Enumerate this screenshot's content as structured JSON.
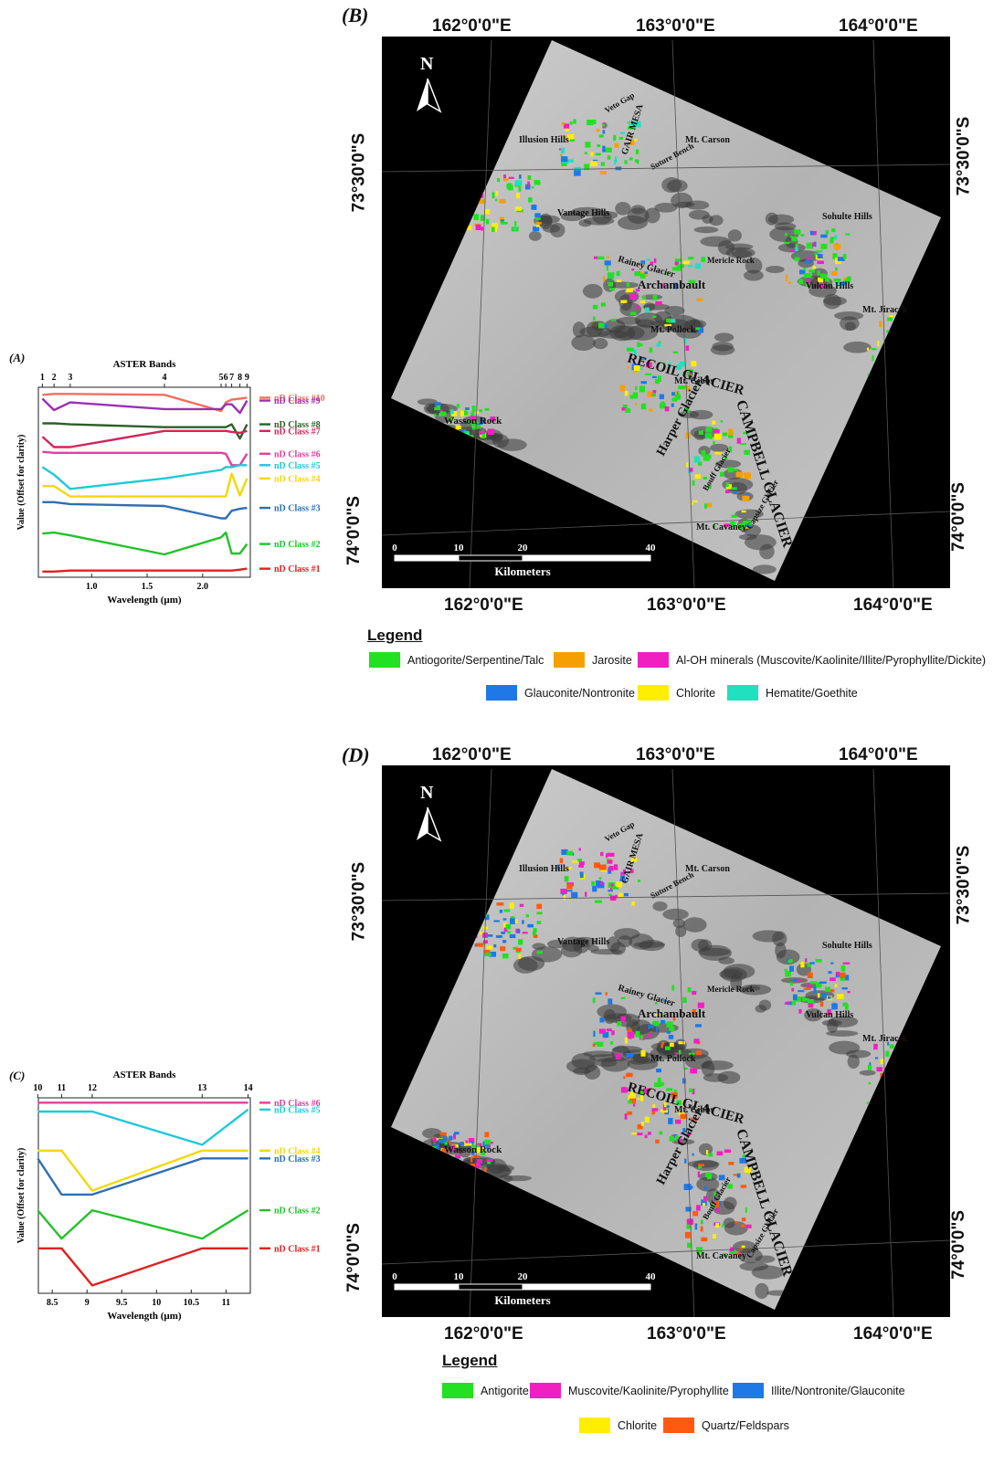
{
  "panels": {
    "A": {
      "label": "(A)",
      "chart_data": {
        "type": "line",
        "title": "ASTER Bands",
        "xlabel": "Wavelength (µm)",
        "ylabel": "Value (Offset for clarity)",
        "xlim": [
          0.52,
          2.43
        ],
        "x_ticks": [
          "1.0",
          "1.5",
          "2.0"
        ],
        "band_ticks": [
          {
            "label": "1",
            "x": 0.556
          },
          {
            "label": "2",
            "x": 0.661
          },
          {
            "label": "3",
            "x": 0.807
          },
          {
            "label": "4",
            "x": 1.656
          },
          {
            "label": "5",
            "x": 2.167
          },
          {
            "label": "6",
            "x": 2.209
          },
          {
            "label": "7",
            "x": 2.262
          },
          {
            "label": "8",
            "x": 2.336
          },
          {
            "label": "9",
            "x": 2.4
          }
        ],
        "x": [
          0.556,
          0.661,
          0.807,
          1.656,
          2.167,
          2.209,
          2.262,
          2.336,
          2.4
        ],
        "series": [
          {
            "name": "nD Class #10",
            "color": "#f07060",
            "values": [
              9.6,
              9.65,
              9.65,
              9.6,
              8.75,
              9.2,
              9.35,
              9.4,
              9.45
            ]
          },
          {
            "name": "nD Class #9",
            "color": "#9b2fb5",
            "values": [
              9.4,
              8.8,
              9.2,
              8.85,
              8.85,
              9.1,
              9.1,
              8.65,
              9.3
            ]
          },
          {
            "name": "nD Class #8",
            "color": "#2f5e2a",
            "values": [
              8.1,
              8.1,
              8.05,
              7.9,
              7.9,
              7.9,
              8.05,
              7.3,
              8.05
            ]
          },
          {
            "name": "nD Class #7",
            "color": "#d42458",
            "values": [
              7.4,
              6.85,
              6.85,
              7.7,
              7.7,
              7.7,
              7.65,
              7.6,
              7.7
            ]
          },
          {
            "name": "nD Class #6",
            "color": "#e040a0",
            "values": [
              6.6,
              6.55,
              6.55,
              6.55,
              6.55,
              6.5,
              5.9,
              5.9,
              6.5
            ]
          },
          {
            "name": "nD Class #5",
            "color": "#20c8d8",
            "values": [
              5.8,
              5.4,
              4.65,
              5.2,
              5.65,
              5.8,
              5.8,
              5.9,
              5.9
            ]
          },
          {
            "name": "nD Class #4",
            "color": "#f2d80a",
            "values": [
              4.8,
              4.8,
              4.25,
              4.25,
              4.25,
              4.25,
              5.45,
              4.3,
              5.2
            ]
          },
          {
            "name": "nD Class #3",
            "color": "#2d6fb3",
            "values": [
              3.95,
              3.95,
              3.85,
              3.75,
              3.1,
              3.1,
              3.5,
              3.6,
              3.65
            ]
          },
          {
            "name": "nD Class #2",
            "color": "#22c22a",
            "values": [
              2.3,
              2.35,
              2.2,
              1.2,
              2.1,
              2.35,
              1.25,
              1.25,
              1.75
            ]
          },
          {
            "name": "nD Class #1",
            "color": "#e02020",
            "values": [
              0.3,
              0.3,
              0.35,
              0.35,
              0.35,
              0.35,
              0.35,
              0.4,
              0.45
            ]
          }
        ],
        "ylim": [
          0,
          10
        ]
      }
    },
    "C": {
      "label": "(C)",
      "chart_data": {
        "type": "line",
        "title": "ASTER Bands",
        "xlabel": "Wavelength (µm)",
        "ylabel": "Value (Offset for clarity)",
        "xlim": [
          8.3,
          11.35
        ],
        "x_ticks": [
          "8.5",
          "9",
          "9.5",
          "10",
          "10.5",
          "11"
        ],
        "band_ticks": [
          {
            "label": "10",
            "x": 8.291
          },
          {
            "label": "11",
            "x": 8.634
          },
          {
            "label": "12",
            "x": 9.075
          },
          {
            "label": "13",
            "x": 10.657
          },
          {
            "label": "14",
            "x": 11.318
          }
        ],
        "x": [
          8.291,
          8.634,
          9.075,
          10.657,
          11.318
        ],
        "series": [
          {
            "name": "nD Class #6",
            "color": "#e040a0",
            "values": [
              9.75,
              9.75,
              9.75,
              9.75,
              9.75
            ]
          },
          {
            "name": "nD Class #5",
            "color": "#20c8d8",
            "values": [
              9.3,
              9.3,
              9.3,
              7.6,
              9.4
            ]
          },
          {
            "name": "nD Class #4",
            "color": "#f2d80a",
            "values": [
              7.3,
              7.3,
              5.25,
              7.3,
              7.3
            ]
          },
          {
            "name": "nD Class #3",
            "color": "#2d6fb3",
            "values": [
              6.9,
              5.05,
              5.05,
              6.9,
              6.9
            ]
          },
          {
            "name": "nD Class #2",
            "color": "#22c22a",
            "values": [
              4.25,
              2.8,
              4.25,
              2.8,
              4.25
            ]
          },
          {
            "name": "nD Class #1",
            "color": "#e02020",
            "values": [
              2.3,
              2.3,
              0.4,
              2.3,
              2.3
            ]
          }
        ],
        "ylim": [
          0,
          10
        ]
      }
    },
    "B": {
      "label": "(B)",
      "top_lon": [
        "162°0'0\"E",
        "163°0'0\"E",
        "164°0'0\"E"
      ],
      "bottom_lon": [
        "162°0'0\"E",
        "163°0'0\"E",
        "164°0'0\"E"
      ],
      "left_lat": [
        "73°30'0\"S",
        "74°0'0\"S"
      ],
      "right_lat": [
        "73°30'0\"S",
        "74°0'0\"S"
      ],
      "north": "N",
      "scale_ticks": [
        "0",
        "10",
        "20",
        "40"
      ],
      "scale_unit": "Kilometers",
      "place_names": [
        "Veto Gap",
        "Illusion Hills",
        "Mt. Carson",
        "Suture Bench",
        "GAIR MESA",
        "Vantage Hills",
        "Sohulte Hills",
        "Mericle Rock",
        "Rainey Glacier",
        "Archambault",
        "Vulcan Hills",
        "Mt. Jiracek",
        "Mt. Pollock",
        "RECOIL GLACIER",
        "Mt. Gibbs",
        "CAMPBELL GLACIER",
        "Wasson Rock",
        "Harper Glacier",
        "Bouff Glacier",
        "Mt. Cavaney",
        "Capsize Glacier"
      ],
      "legend_title": "Legend",
      "legend": [
        {
          "label": "Antiogorite/Serpentine/Talc",
          "color": "#22e022"
        },
        {
          "label": "Jarosite",
          "color": "#f5a000"
        },
        {
          "label": "Al-OH minerals (Muscovite/Kaolinite/Illite/Pyrophyllite/Dickite)",
          "color": "#f020c0"
        },
        {
          "label": "Glauconite/Nontronite",
          "color": "#1e78e6"
        },
        {
          "label": "Chlorite",
          "color": "#ffee00"
        },
        {
          "label": "Hematite/Goethite",
          "color": "#20e0c0"
        }
      ]
    },
    "D": {
      "label": "(D)",
      "top_lon": [
        "162°0'0\"E",
        "163°0'0\"E",
        "164°0'0\"E"
      ],
      "bottom_lon": [
        "162°0'0\"E",
        "163°0'0\"E",
        "164°0'0\"E"
      ],
      "left_lat": [
        "73°30'0\"S",
        "74°0'0\"S"
      ],
      "right_lat": [
        "73°30'0\"S",
        "74°0'0\"S"
      ],
      "north": "N",
      "scale_ticks": [
        "0",
        "10",
        "20",
        "40"
      ],
      "scale_unit": "Kilometers",
      "place_names": [
        "Veto Gap",
        "Illusion Hills",
        "Mt. Carson",
        "Suture Bench",
        "GAIR MESA",
        "Vantage Hills",
        "Sohulte Hills",
        "Mericle Rock",
        "Rainey Glacier",
        "Archambault",
        "Vulcan Hills",
        "Mt. Jiracek",
        "Mt. Pollock",
        "RECOIL GLACIER",
        "Mt. Gibbs",
        "CAMPBELL GLACIER",
        "Wasson Rock",
        "Harper Glacier",
        "Bouff Glacier",
        "Mt. Cavaney",
        "Capsize Glacier"
      ],
      "legend_title": "Legend",
      "legend": [
        {
          "label": "Antigorite",
          "color": "#22e022"
        },
        {
          "label": "Muscovite/Kaolinite/Pyrophyllite",
          "color": "#f020c0"
        },
        {
          "label": "Illite/Nontronite/Glauconite",
          "color": "#1e78e6"
        },
        {
          "label": "Chlorite",
          "color": "#ffee00"
        },
        {
          "label": "Quartz/Feldspars",
          "color": "#ff5a10"
        }
      ]
    }
  }
}
